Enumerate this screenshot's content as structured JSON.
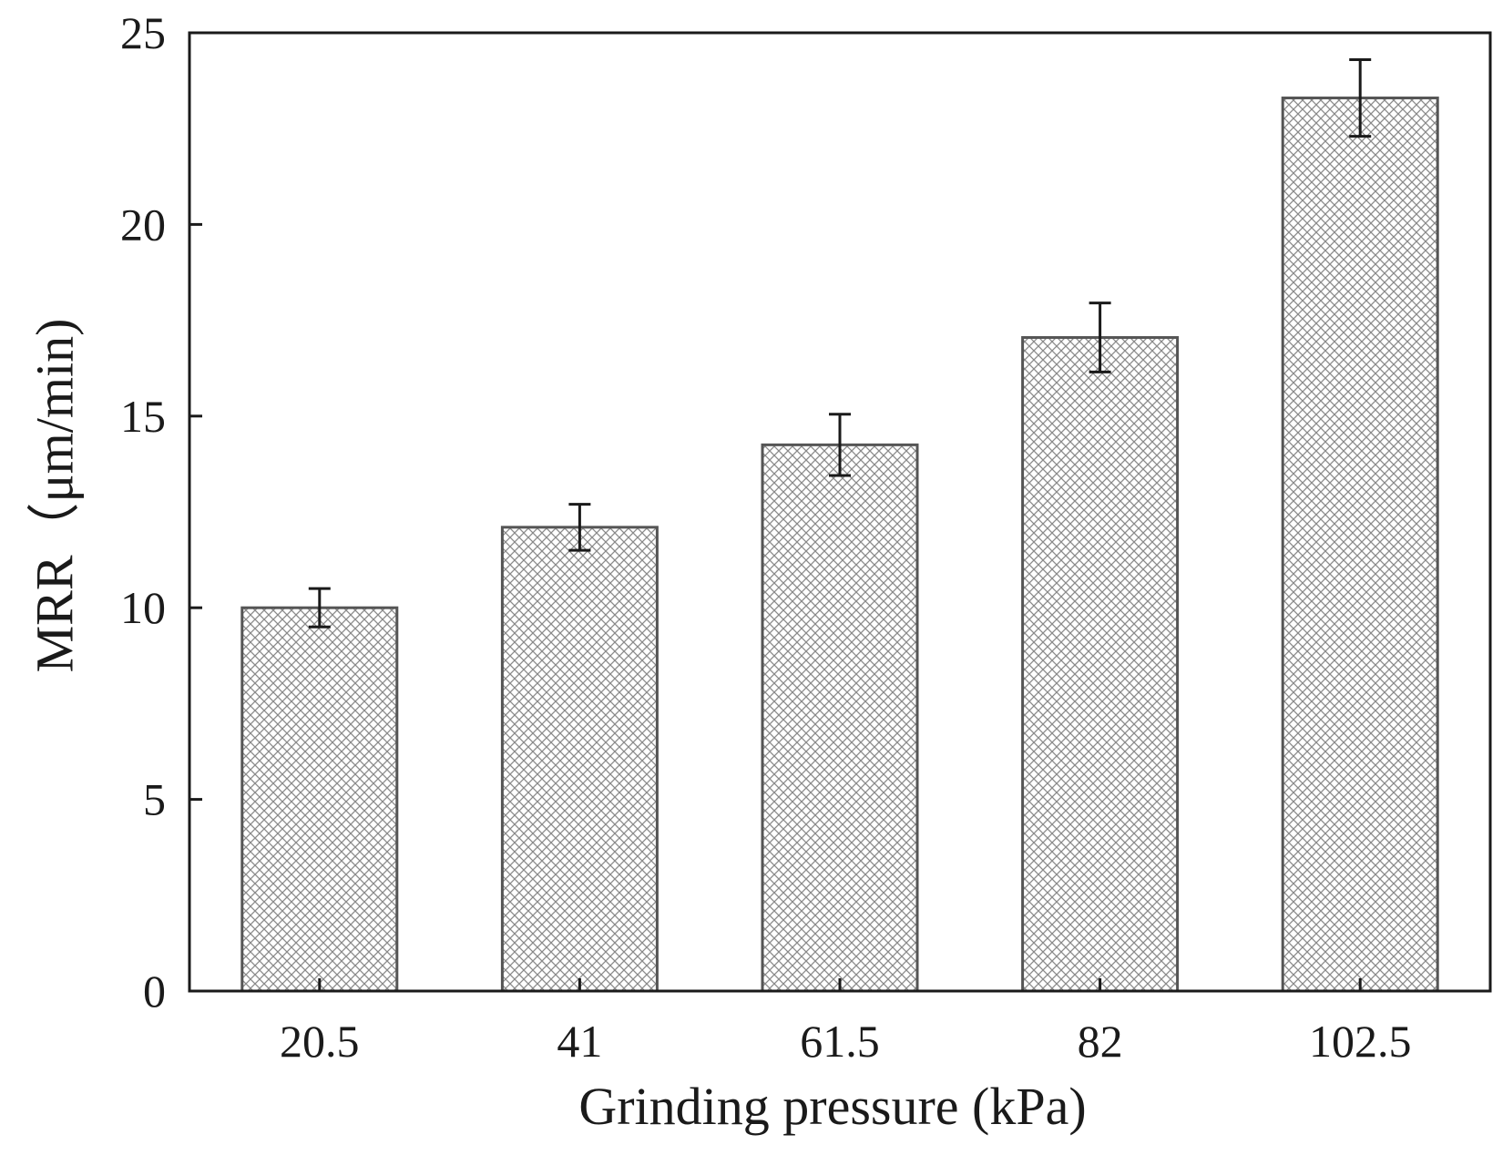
{
  "chart_data": {
    "type": "bar",
    "title": "",
    "xlabel": "Grinding pressure (kPa)",
    "ylabel": "MRR（μm/min)",
    "categories": [
      "20.5",
      "41",
      "61.5",
      "82",
      "102.5"
    ],
    "values": [
      10.0,
      12.1,
      14.25,
      17.05,
      23.3
    ],
    "errors": [
      0.5,
      0.6,
      0.8,
      0.9,
      1.0
    ],
    "ylim": [
      0,
      25
    ],
    "yticks": [
      0,
      5,
      10,
      15,
      20,
      25
    ],
    "ytick_labels": [
      "0",
      "5",
      "10",
      "15",
      "20",
      "25"
    ],
    "grid": false,
    "bar_fill": "crosshatch",
    "colors": {
      "bar_edge": "#555555",
      "hatch": "#8a8a8a",
      "axis": "#1a1a1a",
      "error_bar": "#1a1a1a"
    }
  }
}
